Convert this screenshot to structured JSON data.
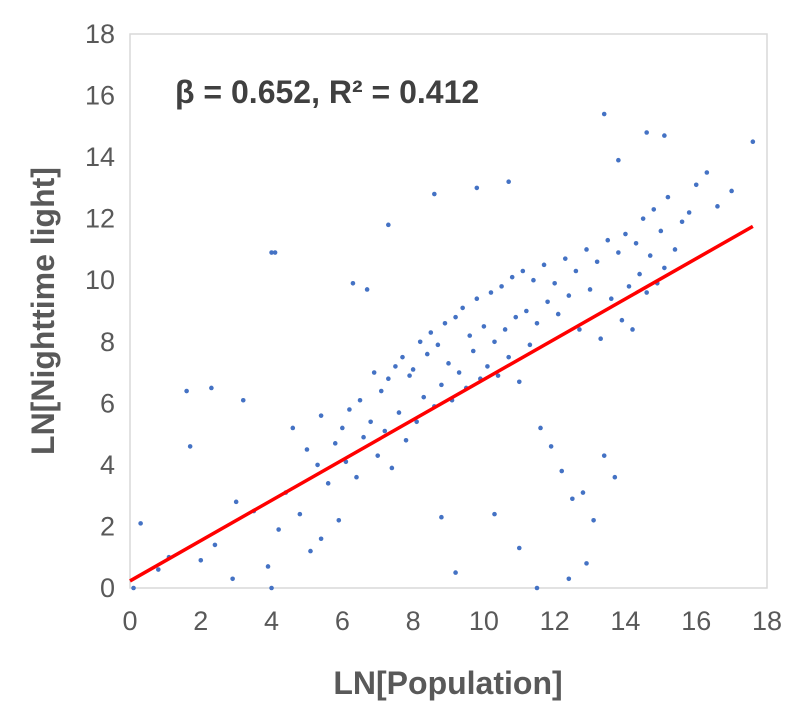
{
  "chart_data": {
    "type": "scatter",
    "xlabel": "LN[Population]",
    "ylabel": "LN[Nighttime light]",
    "xlim": [
      0,
      18
    ],
    "ylim": [
      0,
      18
    ],
    "x_ticks": [
      0,
      2,
      4,
      6,
      8,
      10,
      12,
      14,
      16,
      18
    ],
    "y_ticks": [
      0,
      2,
      4,
      6,
      8,
      10,
      12,
      14,
      16,
      18
    ],
    "grid": false,
    "annotation": "β = 0.652, R² = 0.412",
    "series": [
      {
        "kind": "points",
        "color": "#4472C4",
        "x": [
          0.1,
          0.3,
          0.8,
          1.1,
          1.6,
          1.7,
          2.0,
          2.3,
          2.4,
          2.9,
          3.0,
          3.2,
          3.5,
          3.9,
          4.0,
          4.2,
          4.4,
          4.6,
          4.8,
          5.0,
          5.1,
          5.3,
          5.4,
          5.6,
          5.8,
          5.9,
          6.0,
          6.1,
          6.2,
          6.4,
          6.5,
          6.6,
          6.8,
          6.9,
          7.0,
          7.1,
          7.2,
          7.3,
          7.4,
          7.5,
          7.6,
          7.7,
          7.8,
          7.9,
          8.0,
          8.1,
          8.2,
          8.3,
          8.4,
          8.5,
          8.6,
          8.7,
          8.8,
          8.9,
          9.0,
          9.1,
          9.2,
          9.3,
          9.4,
          9.5,
          9.6,
          9.7,
          9.8,
          9.9,
          10.0,
          10.1,
          10.2,
          10.3,
          10.4,
          10.5,
          10.6,
          10.7,
          10.8,
          10.9,
          11.0,
          11.1,
          11.2,
          11.3,
          11.4,
          11.5,
          11.6,
          11.7,
          11.8,
          11.9,
          12.0,
          12.1,
          12.2,
          12.3,
          12.4,
          12.5,
          12.6,
          12.7,
          12.8,
          12.9,
          13.0,
          13.1,
          13.2,
          13.3,
          13.4,
          13.5,
          13.6,
          13.7,
          13.8,
          13.9,
          14.0,
          14.1,
          14.2,
          14.3,
          14.4,
          14.5,
          14.6,
          14.7,
          14.8,
          14.9,
          15.0,
          15.1,
          15.2,
          15.4,
          15.6,
          15.8,
          16.0,
          16.3,
          16.6,
          17.0,
          17.6,
          4.0,
          13.4,
          9.2,
          10.7,
          4.1,
          6.3,
          8.6,
          15.1,
          11.5,
          12.4,
          7.3,
          5.4,
          9.8,
          10.3,
          12.9,
          8.8,
          6.7,
          14.6,
          13.8,
          11.0
        ],
        "y": [
          0.0,
          2.1,
          0.6,
          1.0,
          6.4,
          4.6,
          0.9,
          6.5,
          1.4,
          0.3,
          2.8,
          6.1,
          2.5,
          0.7,
          10.9,
          1.9,
          3.1,
          5.2,
          2.4,
          4.5,
          1.2,
          4.0,
          5.6,
          3.4,
          4.7,
          2.2,
          5.2,
          4.1,
          5.8,
          3.6,
          6.1,
          4.9,
          5.4,
          7.0,
          4.3,
          6.4,
          5.1,
          6.8,
          3.9,
          7.2,
          5.7,
          7.5,
          4.8,
          6.9,
          7.1,
          5.4,
          8.0,
          6.2,
          7.6,
          8.3,
          5.9,
          7.9,
          6.6,
          8.6,
          7.3,
          6.1,
          8.8,
          7.0,
          9.1,
          6.5,
          8.2,
          7.7,
          9.4,
          6.8,
          8.5,
          7.2,
          9.6,
          8.0,
          6.9,
          9.8,
          8.4,
          7.5,
          10.1,
          8.8,
          6.7,
          10.3,
          9.0,
          7.9,
          10.0,
          8.6,
          5.2,
          10.5,
          9.3,
          4.6,
          9.9,
          8.9,
          3.8,
          10.7,
          9.5,
          2.9,
          10.3,
          8.4,
          3.1,
          11.0,
          9.7,
          2.2,
          10.6,
          8.1,
          4.3,
          11.3,
          9.4,
          3.6,
          10.9,
          8.7,
          11.5,
          9.8,
          8.4,
          11.2,
          10.2,
          12.0,
          9.6,
          10.8,
          12.3,
          9.9,
          11.6,
          10.4,
          12.7,
          11.0,
          11.9,
          12.2,
          13.1,
          13.5,
          12.4,
          12.9,
          14.5,
          0.0,
          15.4,
          0.5,
          13.2,
          10.9,
          9.9,
          12.8,
          14.7,
          0.0,
          0.3,
          11.8,
          1.6,
          13.0,
          2.4,
          0.8,
          2.3,
          9.7,
          14.8,
          13.9,
          1.3
        ]
      },
      {
        "kind": "fit-line",
        "color": "#FF0000",
        "x": [
          0,
          17.6
        ],
        "y": [
          0.23,
          11.75
        ]
      }
    ]
  }
}
